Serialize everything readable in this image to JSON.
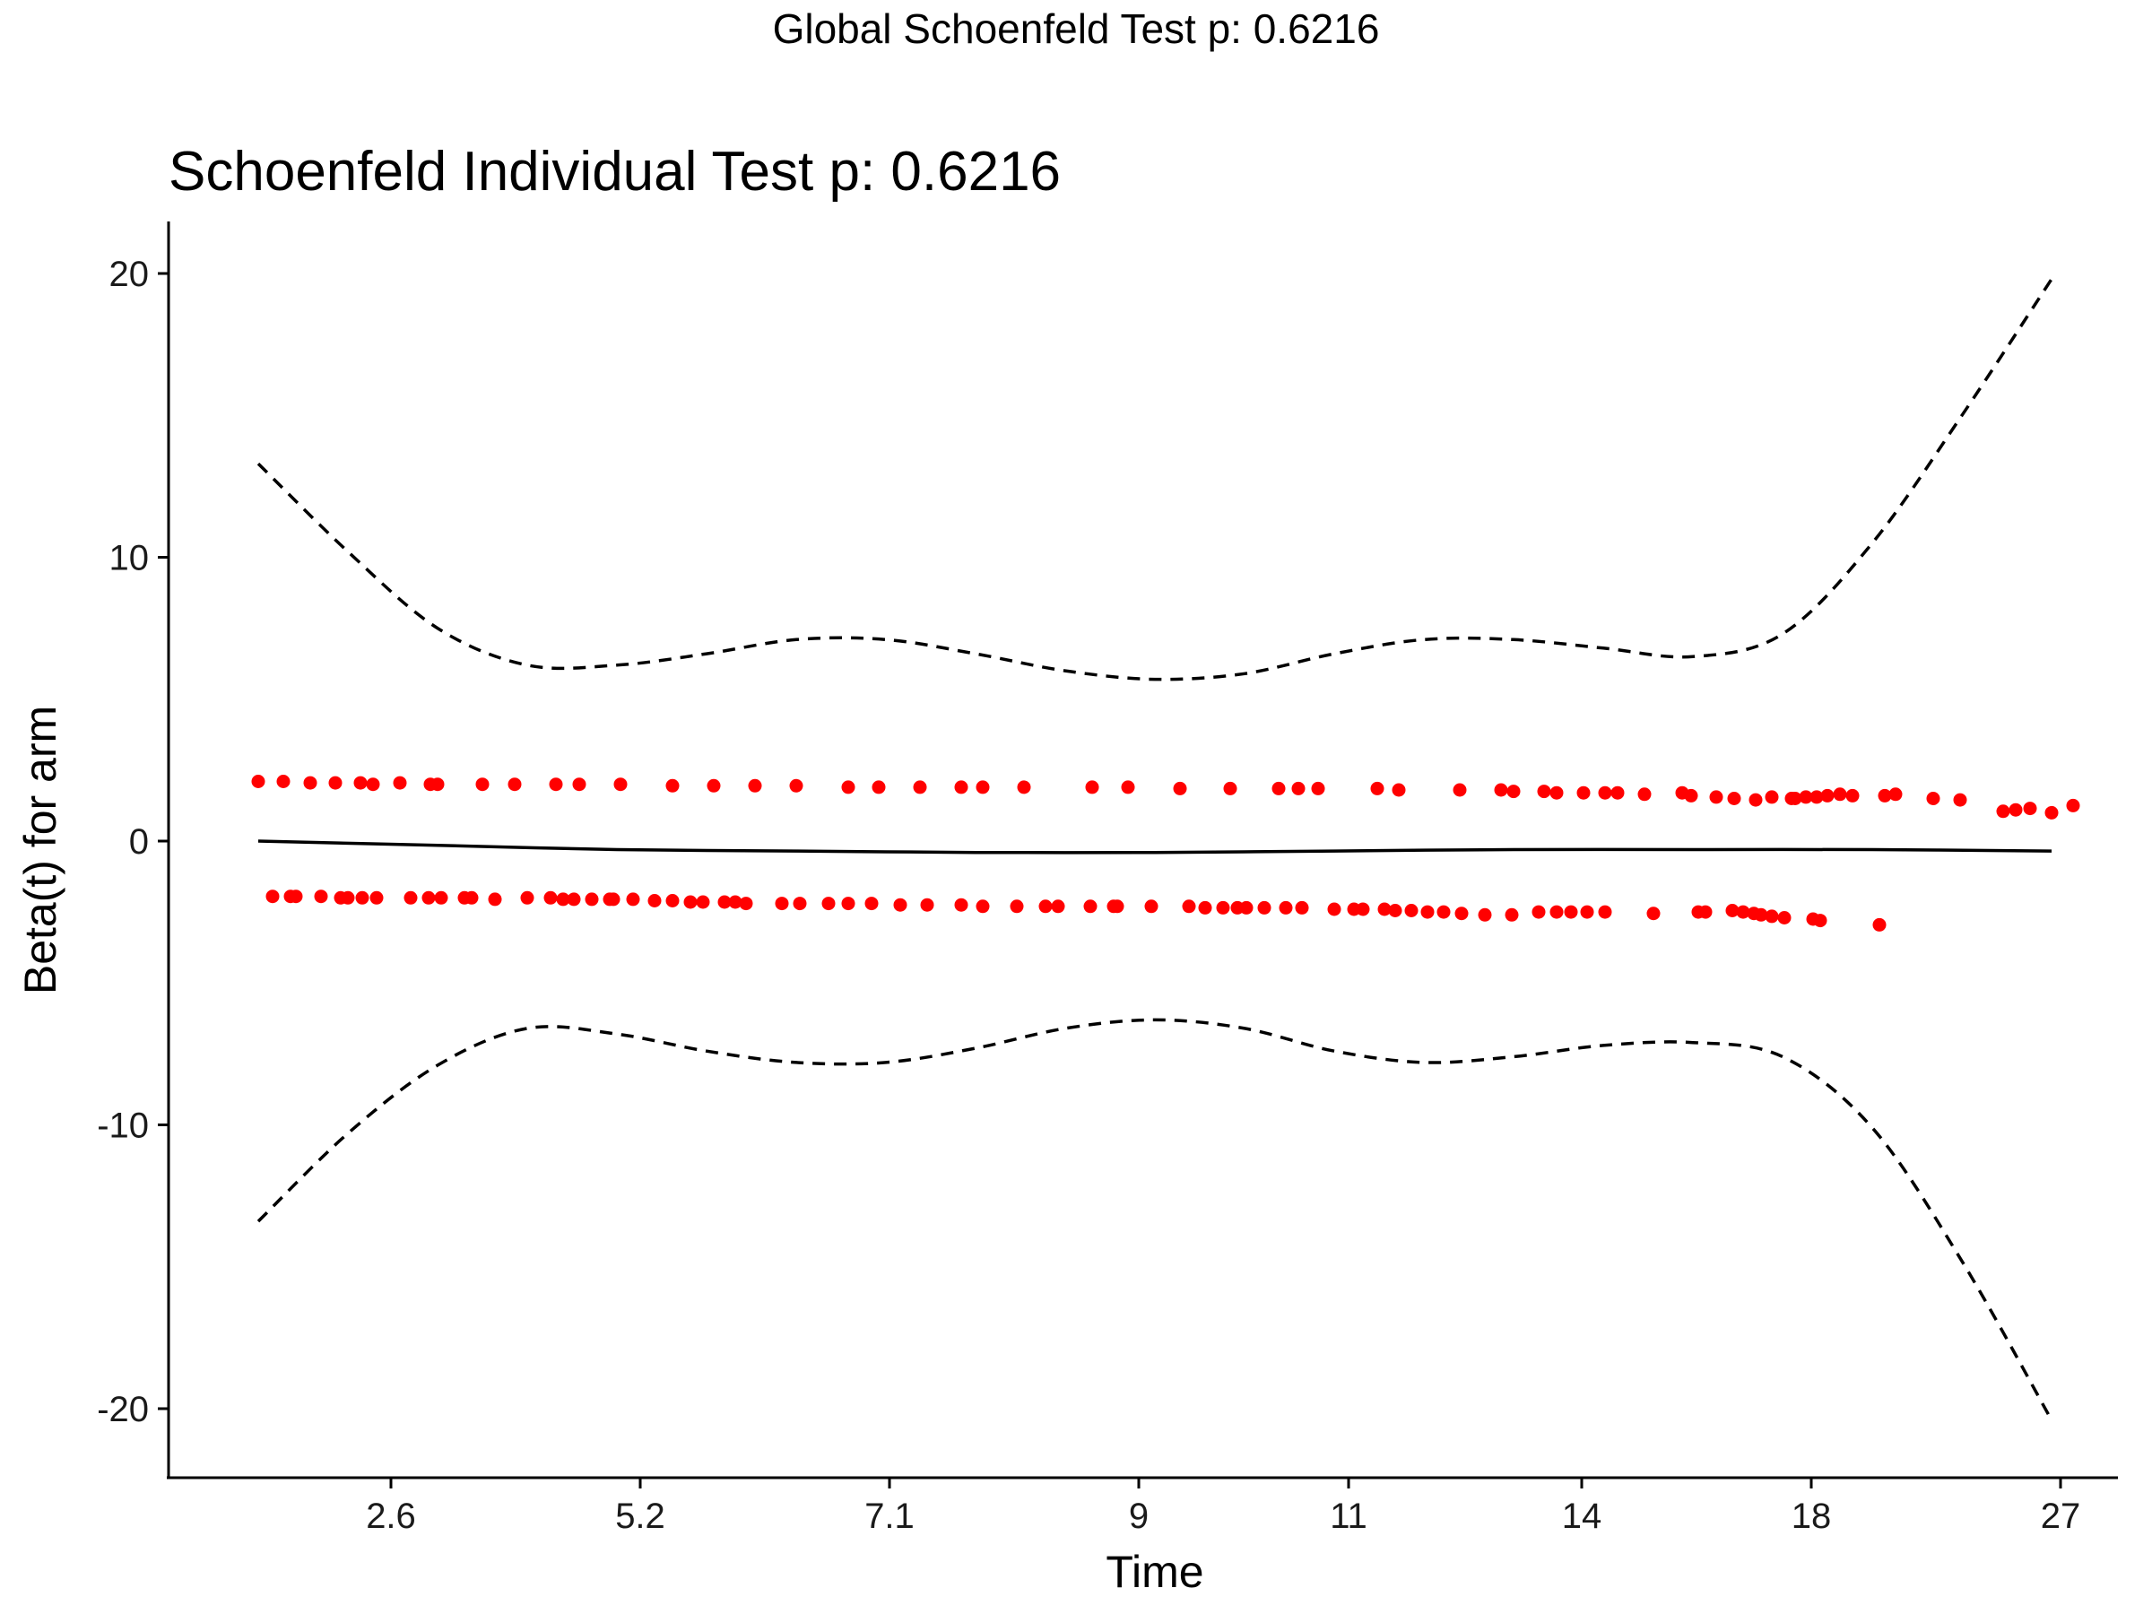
{
  "header": {
    "global_title": "Global Schoenfeld Test p: 0.6216"
  },
  "chart_data": {
    "type": "scatter",
    "title": "Schoenfeld Individual Test p: 0.6216",
    "xlabel": "Time",
    "ylabel": "Beta(t) for arm",
    "x_scale": "rank-transformed time",
    "x_ticks": [
      "2.6",
      "5.2",
      "7.1",
      "9",
      "11",
      "14",
      "18",
      "27"
    ],
    "x_tick_positions": [
      0.074,
      0.213,
      0.352,
      0.491,
      0.608,
      0.738,
      0.866,
      1.005
    ],
    "ylim": [
      -22.5,
      21.5
    ],
    "y_ticks": [
      -20,
      -10,
      0,
      10,
      20
    ],
    "grid": false,
    "legend": "none",
    "point_color": "#ff0000",
    "line_color": "#000000",
    "series": [
      {
        "type": "points",
        "x": [
          0.0,
          0.014,
          0.029,
          0.043,
          0.057,
          0.064,
          0.079,
          0.096,
          0.1,
          0.125,
          0.143,
          0.166,
          0.179,
          0.202,
          0.231,
          0.254,
          0.277,
          0.3,
          0.329,
          0.346,
          0.369,
          0.392,
          0.404,
          0.427,
          0.465,
          0.485,
          0.514,
          0.542,
          0.569,
          0.58,
          0.591,
          0.624,
          0.636,
          0.67,
          0.693,
          0.7,
          0.717,
          0.724,
          0.739,
          0.751,
          0.758,
          0.773,
          0.794,
          0.799,
          0.813,
          0.823,
          0.835,
          0.844,
          0.855,
          0.857,
          0.863,
          0.869,
          0.875,
          0.882,
          0.889,
          0.907,
          0.913,
          0.934,
          0.949,
          0.973,
          0.98,
          0.988,
          1.0,
          1.012
        ],
        "y": [
          2.1,
          2.1,
          2.05,
          2.05,
          2.05,
          2.0,
          2.05,
          2.0,
          2.0,
          2.0,
          2.0,
          2.0,
          2.0,
          2.0,
          1.95,
          1.95,
          1.95,
          1.95,
          1.9,
          1.9,
          1.9,
          1.9,
          1.9,
          1.9,
          1.9,
          1.9,
          1.85,
          1.85,
          1.85,
          1.85,
          1.85,
          1.85,
          1.8,
          1.8,
          1.8,
          1.75,
          1.75,
          1.7,
          1.7,
          1.7,
          1.7,
          1.65,
          1.7,
          1.6,
          1.55,
          1.5,
          1.45,
          1.55,
          1.5,
          1.5,
          1.55,
          1.55,
          1.6,
          1.65,
          1.6,
          1.6,
          1.65,
          1.5,
          1.45,
          1.05,
          1.1,
          1.15,
          1.0,
          1.25
        ]
      },
      {
        "type": "points",
        "x": [
          0.008,
          0.018,
          0.021,
          0.035,
          0.046,
          0.05,
          0.058,
          0.066,
          0.085,
          0.095,
          0.102,
          0.115,
          0.119,
          0.132,
          0.15,
          0.163,
          0.17,
          0.176,
          0.186,
          0.196,
          0.198,
          0.209,
          0.221,
          0.231,
          0.241,
          0.248,
          0.26,
          0.266,
          0.272,
          0.292,
          0.302,
          0.318,
          0.329,
          0.342,
          0.358,
          0.373,
          0.392,
          0.404,
          0.423,
          0.439,
          0.446,
          0.464,
          0.477,
          0.479,
          0.498,
          0.519,
          0.528,
          0.538,
          0.546,
          0.551,
          0.561,
          0.573,
          0.582,
          0.6,
          0.611,
          0.616,
          0.628,
          0.634,
          0.643,
          0.652,
          0.661,
          0.671,
          0.684,
          0.699,
          0.714,
          0.724,
          0.732,
          0.741,
          0.751,
          0.778,
          0.803,
          0.807,
          0.822,
          0.828,
          0.834,
          0.838,
          0.844,
          0.851,
          0.867,
          0.871,
          0.904
        ],
        "y": [
          -1.95,
          -1.95,
          -1.95,
          -1.95,
          -2.0,
          -2.0,
          -2.0,
          -2.0,
          -2.0,
          -2.0,
          -2.0,
          -2.0,
          -2.0,
          -2.05,
          -2.0,
          -2.0,
          -2.05,
          -2.05,
          -2.05,
          -2.05,
          -2.05,
          -2.05,
          -2.1,
          -2.1,
          -2.15,
          -2.15,
          -2.15,
          -2.15,
          -2.2,
          -2.2,
          -2.2,
          -2.2,
          -2.2,
          -2.2,
          -2.25,
          -2.25,
          -2.25,
          -2.3,
          -2.3,
          -2.3,
          -2.3,
          -2.3,
          -2.3,
          -2.3,
          -2.3,
          -2.3,
          -2.35,
          -2.35,
          -2.35,
          -2.35,
          -2.35,
          -2.35,
          -2.35,
          -2.4,
          -2.4,
          -2.4,
          -2.4,
          -2.45,
          -2.45,
          -2.5,
          -2.5,
          -2.55,
          -2.6,
          -2.6,
          -2.5,
          -2.5,
          -2.5,
          -2.5,
          -2.5,
          -2.55,
          -2.5,
          -2.5,
          -2.45,
          -2.5,
          -2.55,
          -2.6,
          -2.65,
          -2.7,
          -2.75,
          -2.8,
          -2.95
        ]
      },
      {
        "type": "line",
        "style": "solid",
        "x": [
          0.0,
          0.1,
          0.2,
          0.3,
          0.4,
          0.5,
          0.6,
          0.7,
          0.8,
          0.9,
          1.0
        ],
        "y": [
          0.0,
          -0.15,
          -0.3,
          -0.35,
          -0.4,
          -0.4,
          -0.35,
          -0.3,
          -0.3,
          -0.3,
          -0.35
        ]
      },
      {
        "type": "line",
        "style": "dashed",
        "x": [
          0.0,
          0.05,
          0.1,
          0.15,
          0.2,
          0.25,
          0.3,
          0.35,
          0.4,
          0.45,
          0.5,
          0.55,
          0.6,
          0.65,
          0.7,
          0.75,
          0.8,
          0.85,
          0.9,
          0.95,
          1.0
        ],
        "y": [
          13.3,
          10.2,
          7.5,
          6.2,
          6.2,
          6.6,
          7.1,
          7.1,
          6.6,
          6.0,
          5.7,
          5.9,
          6.6,
          7.1,
          7.1,
          6.8,
          6.5,
          7.3,
          10.5,
          15.0,
          19.8
        ]
      },
      {
        "type": "line",
        "style": "dashed",
        "x": [
          0.0,
          0.05,
          0.1,
          0.15,
          0.2,
          0.25,
          0.3,
          0.35,
          0.4,
          0.45,
          0.5,
          0.55,
          0.6,
          0.65,
          0.7,
          0.75,
          0.8,
          0.85,
          0.9,
          0.95,
          1.0
        ],
        "y": [
          -13.4,
          -10.3,
          -7.9,
          -6.6,
          -6.8,
          -7.4,
          -7.8,
          -7.8,
          -7.3,
          -6.6,
          -6.3,
          -6.6,
          -7.4,
          -7.8,
          -7.6,
          -7.2,
          -7.1,
          -7.6,
          -10.1,
          -14.8,
          -20.4
        ]
      }
    ]
  }
}
